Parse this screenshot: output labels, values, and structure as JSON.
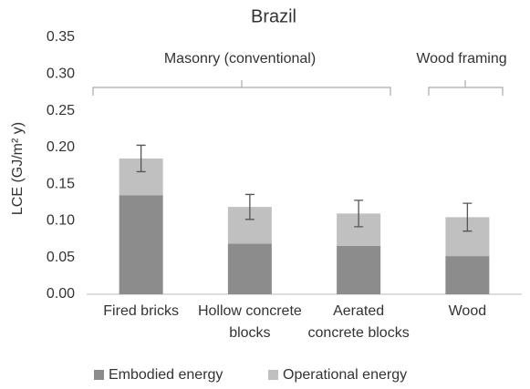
{
  "chart_data": {
    "type": "stacked_bar",
    "title": "Brazil",
    "ylabel": "LCE (GJ/m² y)",
    "categories": [
      "Fired bricks",
      "Hollow concrete blocks",
      "Aerated concrete blocks",
      "Wood"
    ],
    "series": [
      {
        "name": "Embodied energy",
        "color": "#8c8c8c",
        "values": [
          0.135,
          0.069,
          0.066,
          0.052
        ]
      },
      {
        "name": "Operational energy",
        "color": "#c0c0c0",
        "values": [
          0.05,
          0.05,
          0.044,
          0.053
        ]
      }
    ],
    "errors": [
      0.018,
      0.017,
      0.018,
      0.019
    ],
    "annotations": [
      "Masonry (conventional)",
      "Wood framing"
    ],
    "ylim": [
      0,
      0.35
    ],
    "yticks": [
      {
        "value": 0,
        "label": "0.00"
      },
      {
        "value": 0.05,
        "label": "0.05"
      },
      {
        "value": 0.1,
        "label": "0.10"
      },
      {
        "value": 0.15,
        "label": "0.15"
      },
      {
        "value": 0.2,
        "label": "0.20"
      },
      {
        "value": 0.25,
        "label": "0.25"
      },
      {
        "value": 0.3,
        "label": "0.30"
      },
      {
        "value": 0.35,
        "label": "0.35"
      }
    ],
    "grid": false
  }
}
